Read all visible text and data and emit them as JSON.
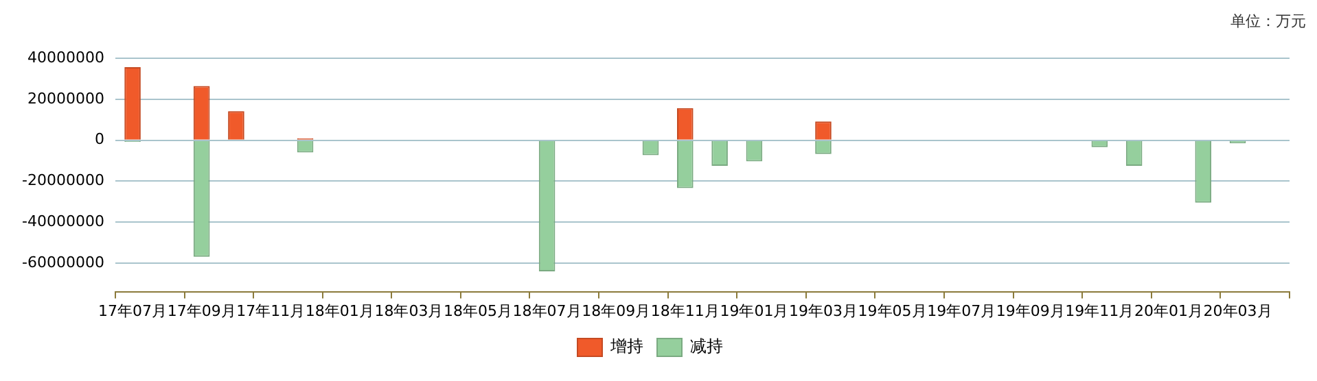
{
  "chart_data": {
    "type": "bar",
    "annotations": [
      "单位：万元"
    ],
    "categories": [
      "17年07月",
      null,
      "17年09月",
      null,
      "17年11月",
      null,
      "18年01月",
      null,
      "18年03月",
      null,
      "18年05月",
      null,
      "18年07月",
      null,
      "18年09月",
      null,
      "18年11月",
      null,
      "19年01月",
      null,
      "19年03月",
      null,
      "19年05月",
      null,
      "19年07月",
      null,
      "19年09月",
      null,
      "19年11月",
      null,
      "20年01月",
      null,
      "20年03月",
      null
    ],
    "series": [
      {
        "name": "增持",
        "color": "#f05a2a",
        "values": [
          35700000,
          null,
          26500000,
          14200000,
          null,
          900000,
          null,
          null,
          null,
          null,
          null,
          null,
          null,
          null,
          null,
          null,
          15700000,
          null,
          null,
          null,
          9200000,
          null,
          null,
          null,
          null,
          null,
          null,
          null,
          null,
          null,
          null,
          null,
          null,
          null
        ]
      },
      {
        "name": "减持",
        "color": "#95cf9d",
        "values": [
          -800000,
          null,
          -57000000,
          null,
          null,
          -6000000,
          null,
          null,
          null,
          null,
          null,
          null,
          -64100000,
          null,
          null,
          -7300000,
          -23400000,
          -12500000,
          -10300000,
          null,
          -6700000,
          null,
          null,
          null,
          null,
          null,
          null,
          null,
          -3400000,
          -12500000,
          null,
          -30500000,
          -1500000,
          -400000
        ]
      }
    ],
    "stacked": true,
    "ylim": [
      -74000000,
      40000000
    ],
    "yticks": [
      -60000000,
      -40000000,
      -20000000,
      0,
      20000000,
      40000000
    ],
    "grid": "y",
    "legend": "bottom"
  }
}
